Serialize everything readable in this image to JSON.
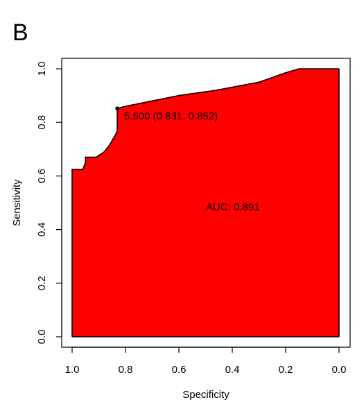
{
  "panel_label": "B",
  "chart_data": {
    "type": "area",
    "xlabel": "Specificity",
    "ylabel": "Sensitivity",
    "xlim": [
      1.0,
      0.0
    ],
    "ylim": [
      0.0,
      1.0
    ],
    "x_reversed": true,
    "x_ticks": [
      1.0,
      0.8,
      0.6,
      0.4,
      0.2,
      0.0
    ],
    "x_tick_labels": [
      "1.0",
      "0.8",
      "0.6",
      "0.4",
      "0.2",
      "0.0"
    ],
    "y_ticks": [
      0.0,
      0.2,
      0.4,
      0.6,
      0.8,
      1.0
    ],
    "y_tick_labels": [
      "0.0",
      "0.2",
      "0.4",
      "0.6",
      "0.8",
      "1.0"
    ],
    "fill_color": "#ff0000",
    "line_color": "#000000",
    "series": [
      {
        "x": [
          1.0,
          1.0,
          0.96,
          0.95,
          0.95,
          0.91,
          0.88,
          0.86,
          0.84,
          0.831,
          0.831,
          0.8,
          0.75,
          0.7,
          0.6,
          0.46,
          0.3,
          0.2,
          0.15,
          0.0
        ],
        "y": [
          0.0,
          0.625,
          0.625,
          0.65,
          0.67,
          0.67,
          0.69,
          0.715,
          0.75,
          0.767,
          0.852,
          0.86,
          0.87,
          0.88,
          0.9,
          0.92,
          0.95,
          0.985,
          1.0,
          1.0
        ]
      }
    ],
    "annotations": [
      {
        "text": "5.500 (0.831, 0.852)",
        "x": 0.831,
        "y": 0.852
      },
      {
        "text": "AUC: 0.891"
      }
    ],
    "threshold_point": {
      "x": 0.831,
      "y": 0.852
    }
  }
}
